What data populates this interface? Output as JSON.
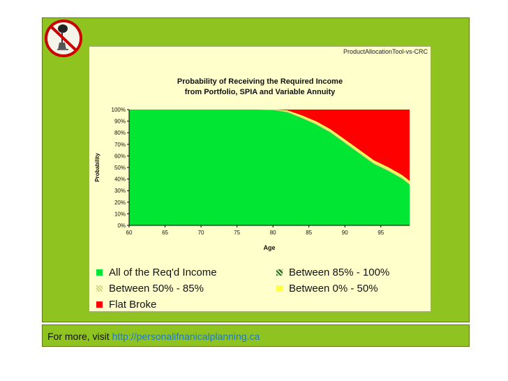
{
  "slide": {
    "background": "#8fc31f"
  },
  "file_label": "ProductAllocationTool-vs-CRC",
  "footer": {
    "prefix": "For more, visit ",
    "link": "http://personalifnanicalplanning.ca"
  },
  "logo": {
    "icon": "no-ostrich-icon"
  },
  "chart_data": {
    "type": "area",
    "title": "Probability of Receiving the Required Income",
    "subtitle": "from Portfolio, SPIA and Variable Annuity",
    "xlabel": "Age",
    "ylabel": "Probability",
    "xlim": [
      60,
      99
    ],
    "ylim": [
      0,
      1
    ],
    "x_ticks": [
      "60",
      "65",
      "70",
      "75",
      "80",
      "85",
      "90",
      "95"
    ],
    "y_ticks": [
      "0%",
      "10%",
      "20%",
      "30%",
      "40%",
      "50%",
      "60%",
      "70%",
      "80%",
      "90%",
      "100%"
    ],
    "stacked": true,
    "x": [
      60,
      78,
      80,
      82,
      84,
      86,
      88,
      90,
      92,
      94,
      96,
      98,
      99
    ],
    "series": [
      {
        "name": "All of the Req'd Income",
        "color": "#00e632",
        "marker": "solid",
        "values": [
          1.0,
          1.0,
          0.995,
          0.975,
          0.925,
          0.87,
          0.8,
          0.71,
          0.62,
          0.53,
          0.47,
          0.4,
          0.35
        ]
      },
      {
        "name": "Between 85% - 100%",
        "color": "#5a8a3a",
        "marker": "checkered",
        "values": [
          0,
          0,
          0.002,
          0.003,
          0.003,
          0.003,
          0.003,
          0.003,
          0.003,
          0.003,
          0.003,
          0.003,
          0.003
        ]
      },
      {
        "name": "Between 50% - 85%",
        "color": "#d7ea7a",
        "marker": "dotted",
        "values": [
          0,
          0,
          0.003,
          0.01,
          0.012,
          0.013,
          0.014,
          0.015,
          0.015,
          0.015,
          0.015,
          0.015,
          0.015
        ]
      },
      {
        "name": "Between 0% - 50%",
        "color": "#ffff44",
        "marker": "solid",
        "values": [
          0,
          0,
          0,
          0.005,
          0.01,
          0.012,
          0.013,
          0.014,
          0.015,
          0.015,
          0.015,
          0.015,
          0.015
        ]
      },
      {
        "name": "Flat Broke",
        "color": "#ff0000",
        "marker": "solid",
        "values": [
          0,
          0,
          0,
          0.007,
          0.05,
          0.102,
          0.17,
          0.258,
          0.347,
          0.437,
          0.497,
          0.567,
          0.617
        ]
      }
    ],
    "legend_placement": "bottom"
  }
}
